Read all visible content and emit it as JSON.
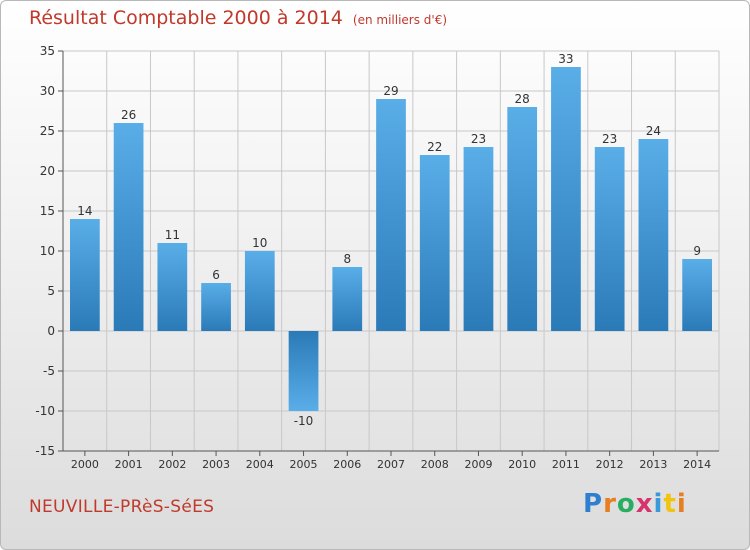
{
  "title": "Résultat Comptable 2000 à 2014",
  "subtitle": "(en milliers d'€)",
  "place": "NEUVILLE-PRèS-SéES",
  "logo": "Proxiti",
  "colors": {
    "bar_light": "#5aaee8",
    "bar_dark": "#2a7ab8",
    "title": "#c0392b",
    "grid": "#c8c8c8"
  },
  "chart_data": {
    "type": "bar",
    "categories": [
      "2000",
      "2001",
      "2002",
      "2003",
      "2004",
      "2005",
      "2006",
      "2007",
      "2008",
      "2009",
      "2010",
      "2011",
      "2012",
      "2013",
      "2014"
    ],
    "values": [
      14,
      26,
      11,
      6,
      10,
      -10,
      8,
      29,
      22,
      23,
      28,
      33,
      23,
      24,
      9
    ],
    "value_labels": [
      "14",
      "26",
      "11",
      "6",
      "10",
      "-10",
      "8",
      "29",
      "22",
      "23",
      "28",
      "33",
      "23",
      "24",
      "9"
    ],
    "yticks": [
      35,
      30,
      25,
      20,
      15,
      10,
      5,
      0,
      -5,
      -10,
      -15
    ],
    "ytick_labels": [
      "35",
      "30",
      "25",
      "20",
      "15",
      "10",
      "5",
      "0",
      "-5",
      "-10",
      "-15"
    ],
    "ylim": [
      -15,
      35
    ],
    "grid": true,
    "legend": "none"
  }
}
